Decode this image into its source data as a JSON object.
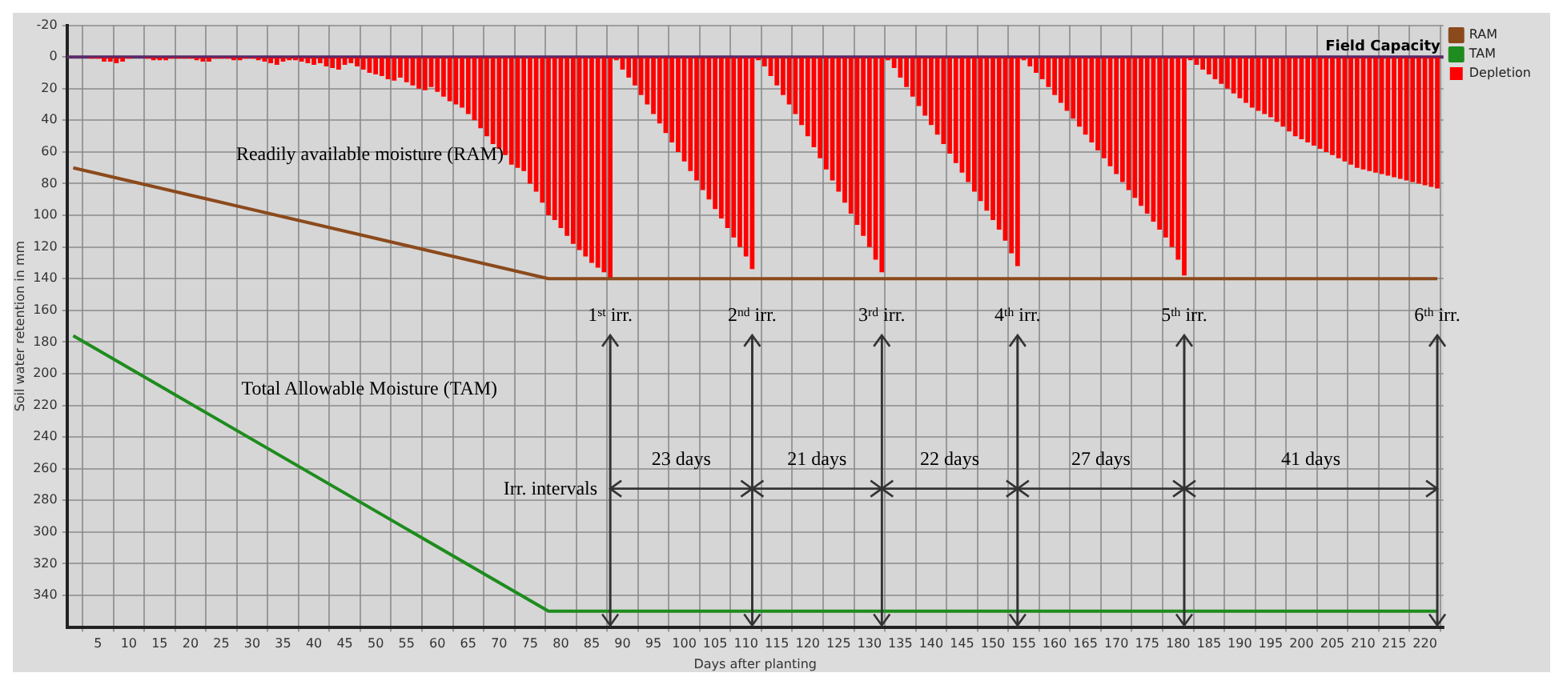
{
  "chart_data": {
    "type": "bar",
    "xlabel": "Days after planting",
    "ylabel": "Soil water retention in mm",
    "x": [
      1,
      2,
      3,
      4,
      5,
      6,
      7,
      8,
      9,
      10,
      11,
      12,
      13,
      14,
      15,
      16,
      17,
      18,
      19,
      20,
      21,
      22,
      23,
      24,
      25,
      26,
      27,
      28,
      29,
      30,
      31,
      32,
      33,
      34,
      35,
      36,
      37,
      38,
      39,
      40,
      41,
      42,
      43,
      44,
      45,
      46,
      47,
      48,
      49,
      50,
      51,
      52,
      53,
      54,
      55,
      56,
      57,
      58,
      59,
      60,
      61,
      62,
      63,
      64,
      65,
      66,
      67,
      68,
      69,
      70,
      71,
      72,
      73,
      74,
      75,
      76,
      77,
      78,
      79,
      80,
      81,
      82,
      83,
      84,
      85,
      86,
      87,
      88,
      89,
      90,
      91,
      92,
      93,
      94,
      95,
      96,
      97,
      98,
      99,
      100,
      101,
      102,
      103,
      104,
      105,
      106,
      107,
      108,
      109,
      110,
      111,
      112,
      113,
      114,
      115,
      116,
      117,
      118,
      119,
      120,
      121,
      122,
      123,
      124,
      125,
      126,
      127,
      128,
      129,
      130,
      131,
      132,
      133,
      134,
      135,
      136,
      137,
      138,
      139,
      140,
      141,
      142,
      143,
      144,
      145,
      146,
      147,
      148,
      149,
      150,
      151,
      152,
      153,
      154,
      155,
      156,
      157,
      158,
      159,
      160,
      161,
      162,
      163,
      164,
      165,
      166,
      167,
      168,
      169,
      170,
      171,
      172,
      173,
      174,
      175,
      176,
      177,
      178,
      179,
      180,
      181,
      182,
      183,
      184,
      185,
      186,
      187,
      188,
      189,
      190,
      191,
      192,
      193,
      194,
      195,
      196,
      197,
      198,
      199,
      200,
      201,
      202,
      203,
      204,
      205,
      206,
      207,
      208,
      209,
      210,
      211,
      212,
      213,
      214,
      215,
      216,
      217,
      218,
      219,
      220,
      221,
      222
    ],
    "series": [
      {
        "name": "RAM",
        "type": "line",
        "color": "#8b4a1c",
        "x": [
          1,
          78,
          222
        ],
        "values": [
          70,
          140,
          140
        ]
      },
      {
        "name": "TAM",
        "type": "line",
        "color": "#1e8c1e",
        "x": [
          1,
          78,
          222
        ],
        "values": [
          176,
          350,
          350
        ]
      },
      {
        "name": "Depletion",
        "color": "#ff0000",
        "values": [
          0,
          0,
          0,
          1,
          1,
          3,
          3,
          4,
          3,
          1,
          0,
          0,
          1,
          2,
          2,
          2,
          1,
          1,
          1,
          1,
          2,
          3,
          3,
          1,
          1,
          1,
          2,
          2,
          1,
          1,
          2,
          3,
          4,
          5,
          3,
          2,
          2,
          3,
          4,
          5,
          4,
          6,
          7,
          8,
          5,
          4,
          6,
          8,
          10,
          11,
          12,
          14,
          15,
          13,
          16,
          18,
          20,
          21,
          19,
          22,
          25,
          28,
          30,
          32,
          36,
          40,
          45,
          50,
          55,
          58,
          62,
          68,
          70,
          72,
          80,
          85,
          92,
          100,
          103,
          108,
          113,
          118,
          122,
          126,
          130,
          133,
          136,
          140,
          2,
          8,
          13,
          18,
          24,
          30,
          36,
          42,
          48,
          54,
          60,
          66,
          72,
          78,
          84,
          90,
          96,
          102,
          108,
          114,
          120,
          126,
          134,
          2,
          6,
          12,
          18,
          24,
          30,
          36,
          43,
          50,
          57,
          64,
          71,
          78,
          85,
          92,
          99,
          106,
          113,
          120,
          128,
          136,
          2,
          7,
          13,
          19,
          25,
          31,
          37,
          43,
          49,
          55,
          61,
          67,
          73,
          79,
          85,
          91,
          97,
          103,
          109,
          116,
          124,
          132,
          2,
          6,
          10,
          14,
          19,
          24,
          29,
          34,
          39,
          44,
          49,
          54,
          59,
          64,
          69,
          74,
          79,
          84,
          89,
          94,
          99,
          104,
          109,
          114,
          120,
          128,
          138,
          2,
          5,
          8,
          11,
          14,
          17,
          20,
          23,
          26,
          29,
          32,
          34,
          36,
          38,
          41,
          44,
          47,
          50,
          52,
          54,
          56,
          58,
          60,
          62,
          64,
          66,
          68,
          70,
          71,
          72,
          73,
          74,
          75,
          76,
          77,
          78,
          79,
          80,
          81,
          82,
          83
        ]
      }
    ],
    "xlim": [
      0,
      223
    ],
    "xticks": [
      5,
      10,
      15,
      20,
      25,
      30,
      35,
      40,
      45,
      50,
      55,
      60,
      65,
      70,
      75,
      80,
      85,
      90,
      95,
      100,
      105,
      110,
      115,
      120,
      125,
      130,
      135,
      140,
      145,
      150,
      155,
      160,
      165,
      170,
      175,
      180,
      185,
      190,
      195,
      200,
      205,
      210,
      215,
      220
    ],
    "ylim": [
      360,
      -20
    ],
    "yticks": [
      -20,
      0,
      20,
      40,
      60,
      80,
      100,
      120,
      140,
      160,
      180,
      200,
      220,
      240,
      260,
      280,
      300,
      320,
      340
    ],
    "grid": true,
    "legend": "top right",
    "marker": "none",
    "line_style": "solid",
    "ref_lines": [
      {
        "axis": "y",
        "value": 0,
        "label": "Field Capacity",
        "color": "#5a2a6a"
      },
      {
        "axis": "x",
        "value": 88,
        "label": "1$^{st}$ irr.",
        "color": "#333333"
      },
      {
        "axis": "x",
        "value": 111,
        "label": "2$^{nd}$ irr.",
        "color": "#333333"
      },
      {
        "axis": "x",
        "value": 132,
        "label": "3$^{rd}$ irr.",
        "color": "#333333"
      },
      {
        "axis": "x",
        "value": 154,
        "label": "4$^{th}$ irr.",
        "color": "#333333"
      },
      {
        "axis": "x",
        "value": 181,
        "label": "5$^{th}$ irr.",
        "color": "#333333"
      },
      {
        "axis": "x",
        "value": 222,
        "label": "6$^{th}$ irr.",
        "color": "#333333"
      }
    ],
    "annotations": [
      "Readily available moisture (RAM)",
      "Total Allowable Moisture (TAM)",
      {
        "text": "Irr. intervals",
        "x": 88,
        "y": 273
      },
      "23 days",
      "21 days",
      "22 days",
      "27 days",
      "41 days"
    ]
  }
}
